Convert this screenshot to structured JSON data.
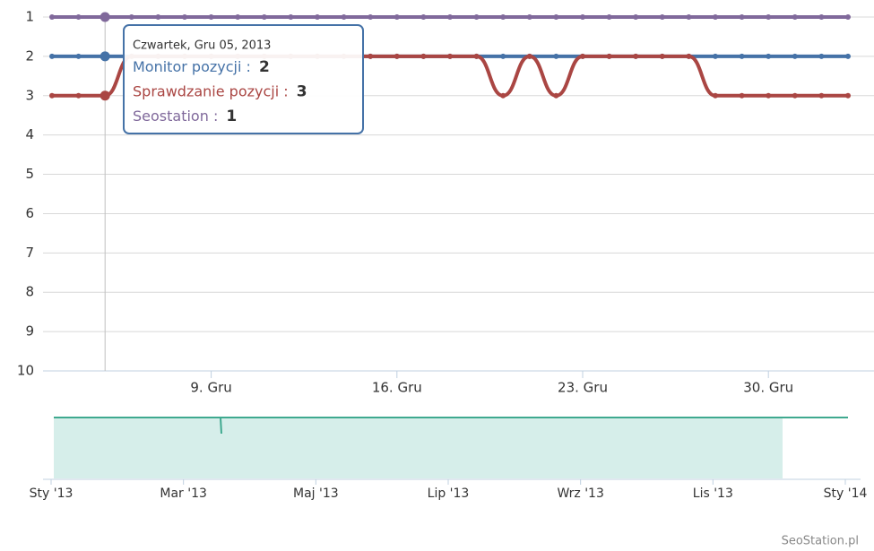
{
  "chart_data": {
    "type": "line",
    "x": [
      "2013-12-03",
      "2013-12-04",
      "2013-12-05",
      "2013-12-06",
      "2013-12-07",
      "2013-12-08",
      "2013-12-09",
      "2013-12-10",
      "2013-12-11",
      "2013-12-12",
      "2013-12-13",
      "2013-12-14",
      "2013-12-15",
      "2013-12-16",
      "2013-12-17",
      "2013-12-18",
      "2013-12-19",
      "2013-12-20",
      "2013-12-21",
      "2013-12-22",
      "2013-12-23",
      "2013-12-24",
      "2013-12-25",
      "2013-12-26",
      "2013-12-27",
      "2013-12-28",
      "2013-12-29",
      "2013-12-30",
      "2013-12-31",
      "2014-01-01",
      "2014-01-02"
    ],
    "series": [
      {
        "name": "Monitor pozycji",
        "color": "#4572a7",
        "values": [
          2,
          2,
          2,
          2,
          2,
          2,
          2,
          2,
          2,
          2,
          2,
          2,
          2,
          2,
          2,
          2,
          2,
          2,
          2,
          2,
          2,
          2,
          2,
          2,
          2,
          2,
          2,
          2,
          2,
          2,
          2
        ]
      },
      {
        "name": "Sprawdzanie pozycji",
        "color": "#aa4643",
        "values": [
          3,
          3,
          3,
          2,
          2,
          2,
          2,
          2,
          2,
          2,
          2,
          2,
          2,
          2,
          2,
          2,
          2,
          3,
          2,
          3,
          2,
          2,
          2,
          2,
          2,
          3,
          3,
          3,
          3,
          3,
          3
        ]
      },
      {
        "name": "Seostation",
        "color": "#80699b",
        "values": [
          1,
          1,
          1,
          1,
          1,
          1,
          1,
          1,
          1,
          1,
          1,
          1,
          1,
          1,
          1,
          1,
          1,
          1,
          1,
          1,
          1,
          1,
          1,
          1,
          1,
          1,
          1,
          1,
          1,
          1,
          1
        ]
      }
    ],
    "xlim": [
      "2013-12-03",
      "2014-01-02"
    ],
    "xticks": [
      {
        "value": "2013-12-09",
        "label": "9. Gru"
      },
      {
        "value": "2013-12-16",
        "label": "16. Gru"
      },
      {
        "value": "2013-12-23",
        "label": "23. Gru"
      },
      {
        "value": "2013-12-30",
        "label": "30. Gru"
      }
    ],
    "ylim": [
      1,
      10
    ],
    "yticks": [
      1,
      2,
      3,
      4,
      5,
      6,
      7,
      8,
      9,
      10
    ],
    "y_reversed": true,
    "grid": true,
    "tooltip": {
      "index": 2,
      "title": "Czwartek, Gru 05, 2013",
      "separator": " : "
    },
    "navigator": {
      "xticks": [
        "Sty '13",
        "Mar '13",
        "Maj '13",
        "Lip '13",
        "Wrz '13",
        "Lis '13",
        "Sty '14"
      ]
    },
    "credits": "SeoStation.pl"
  }
}
